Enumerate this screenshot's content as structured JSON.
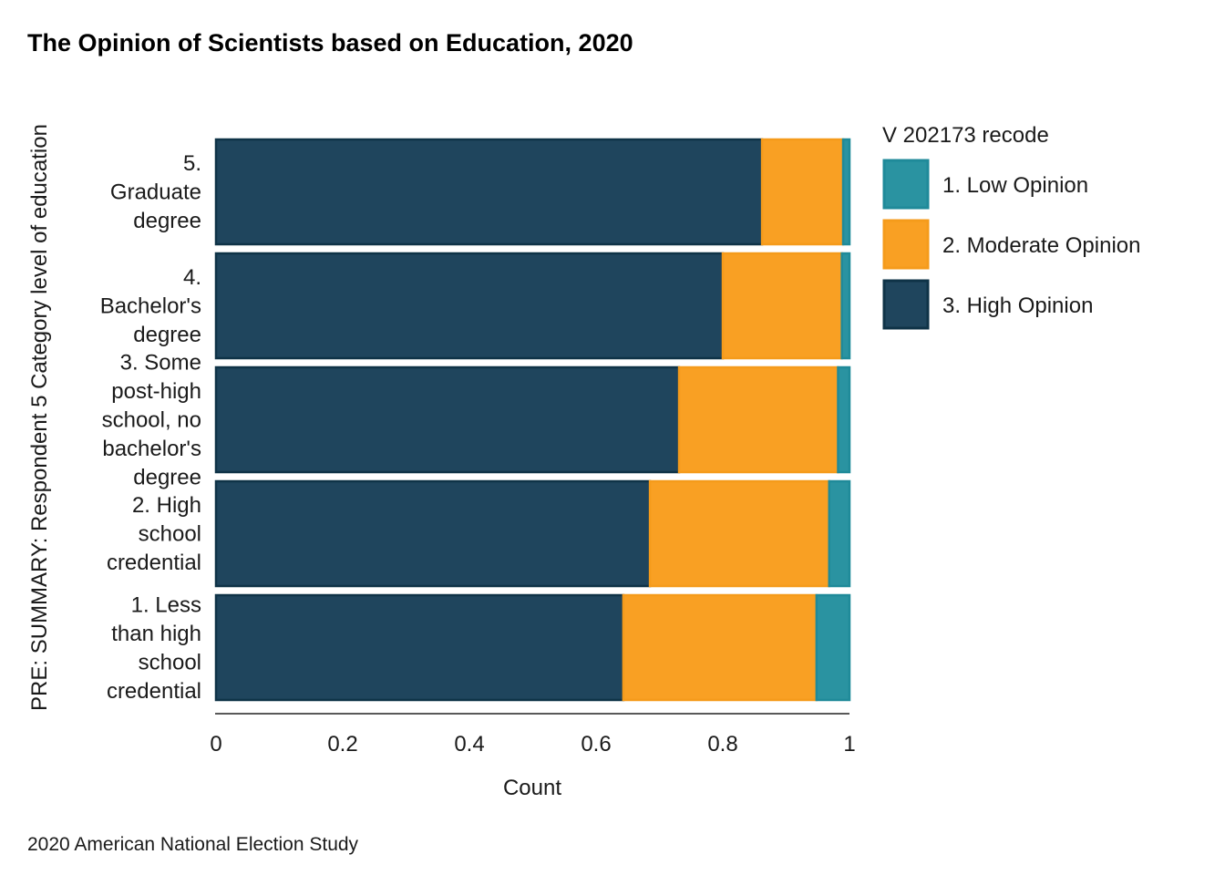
{
  "chart_data": {
    "type": "bar",
    "orientation": "horizontal",
    "stacked": true,
    "title": "The Opinion of Scientists based on Education, 2020",
    "caption": "2020 American National Election Study",
    "xlabel": "Count",
    "ylabel": "PRE: SUMMARY: Respondent 5 Category level of education",
    "xlim": [
      0,
      1
    ],
    "xticks": [
      0,
      0.2,
      0.4,
      0.6,
      0.8,
      1
    ],
    "xtick_labels": [
      "0",
      "0.2",
      "0.4",
      "0.6",
      "0.8",
      "1"
    ],
    "grid": false,
    "legend": {
      "title": "V 202173 recode",
      "position": "right"
    },
    "categories": [
      [
        "5.",
        "Graduate",
        "degree"
      ],
      [
        "4.",
        "Bachelor's",
        "degree"
      ],
      [
        "3. Some",
        "post-high",
        "school, no",
        "bachelor's",
        "degree"
      ],
      [
        "2. High",
        "school",
        "credential"
      ],
      [
        "1. Less",
        "than high",
        "school",
        "credential"
      ]
    ],
    "series": [
      {
        "name": "1. Low Opinion",
        "color": "#2A93A1",
        "stroke": "#1F8A99",
        "values": [
          0.01,
          0.012,
          0.018,
          0.032,
          0.052
        ]
      },
      {
        "name": "2. Moderate Opinion",
        "color": "#F9A023",
        "stroke": "#F59B1B",
        "values": [
          0.128,
          0.188,
          0.251,
          0.283,
          0.305
        ]
      },
      {
        "name": "3. High Opinion",
        "color": "#1F455D",
        "stroke": "#0F3347",
        "values": [
          0.862,
          0.8,
          0.731,
          0.685,
          0.643
        ]
      }
    ],
    "stack_order": [
      "3. High Opinion",
      "2. Moderate Opinion",
      "1. Low Opinion"
    ]
  }
}
